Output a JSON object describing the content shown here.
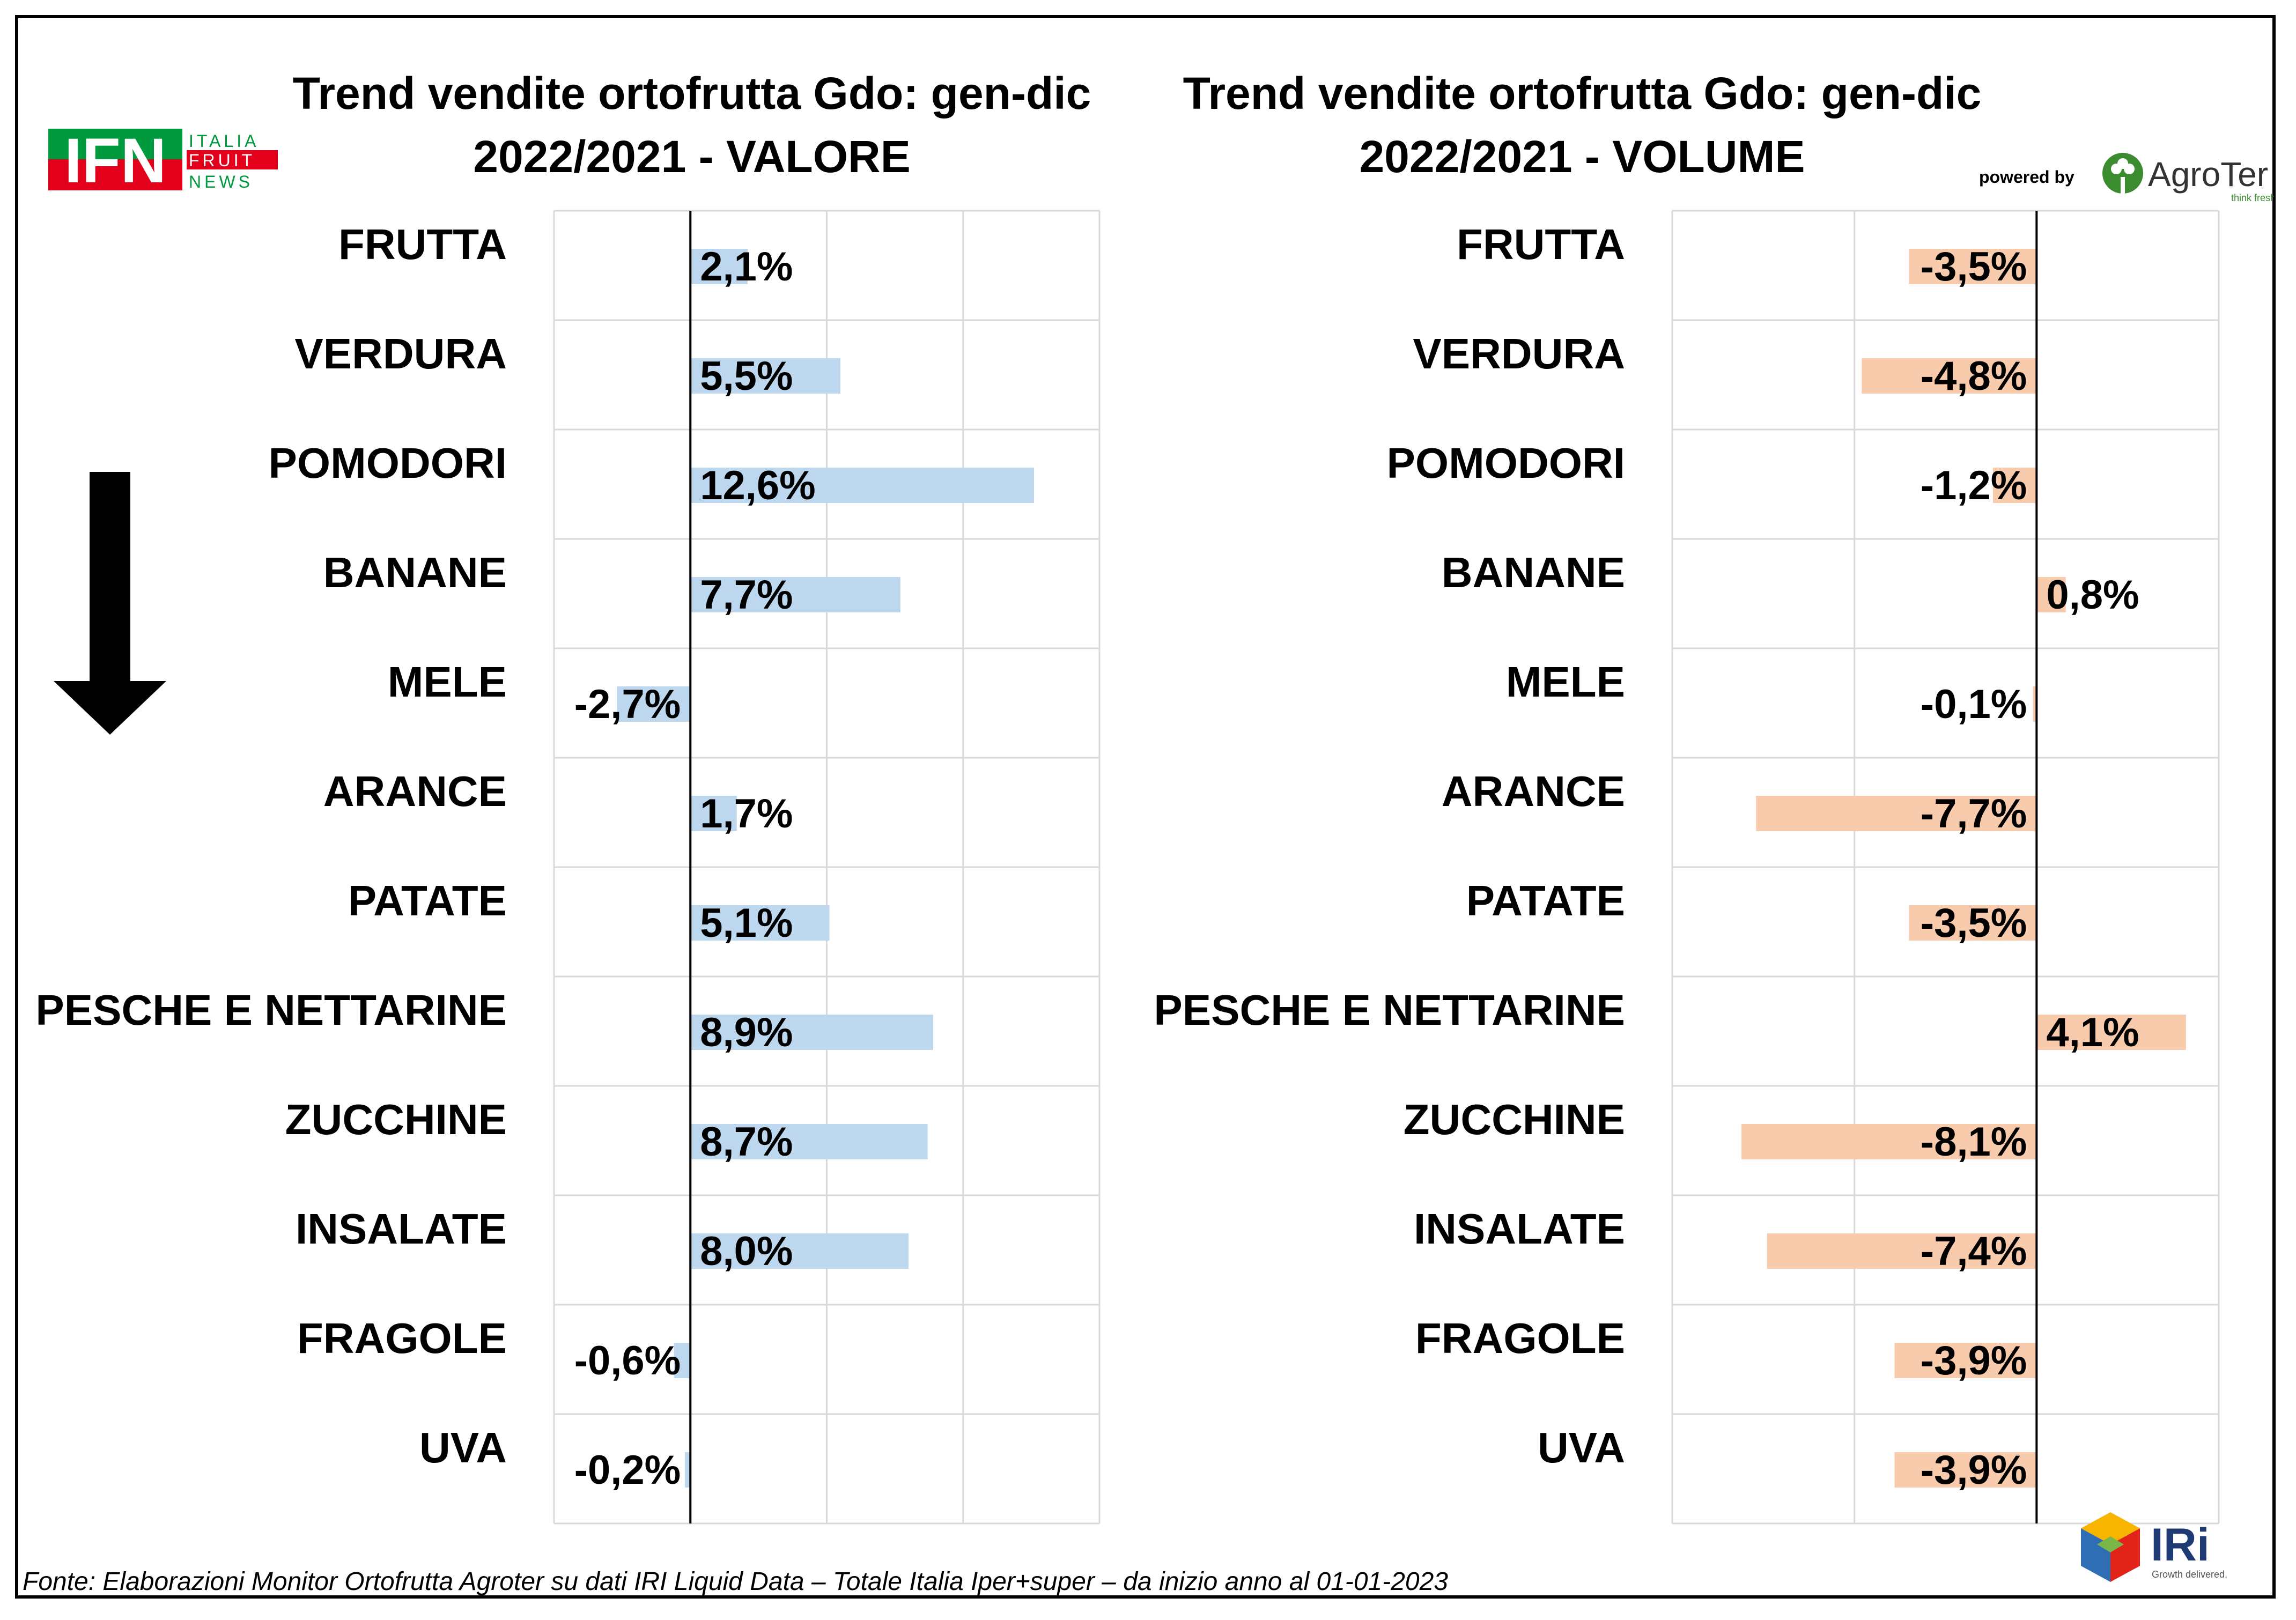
{
  "titles": {
    "left_line1": "Trend vendite ortofrutta Gdo: gen-dic",
    "left_line2": "2022/2021 - VALORE",
    "right_line1": "Trend vendite ortofrutta Gdo: gen-dic",
    "right_line2": "2022/2021 - VOLUME"
  },
  "logos": {
    "ifn_text": "IFN",
    "ifn_line1": "ITALIA",
    "ifn_line2": "FRUIT",
    "ifn_line3": "NEWS",
    "powered_by": "powered by",
    "agroter_name": "AgroTer",
    "agroter_tagline": "think fresh",
    "iri_name": "IRi",
    "iri_tagline": "Growth delivered."
  },
  "source_note": "Fonte: Elaborazioni Monitor Ortofrutta Agroter su dati IRI Liquid Data – Totale Italia Iper+super –  da inizio anno al 01-01-2023",
  "colors": {
    "valore_bar": "#bdd7ee",
    "volume_bar": "#f8cbad",
    "grid": "#d9d9d9",
    "ifn_red": "#e3001b",
    "ifn_green": "#009a3e",
    "agroter_green": "#3a8c2f"
  },
  "chart_data": [
    {
      "type": "bar",
      "orientation": "horizontal",
      "title": "Trend vendite ortofrutta Gdo: gen-dic 2022/2021 - VALORE",
      "categories": [
        "FRUTTA",
        "VERDURA",
        "POMODORI",
        "BANANE",
        "MELE",
        "ARANCE",
        "PATATE",
        "PESCHE E NETTARINE",
        "ZUCCHINE",
        "INSALATE",
        "FRAGOLE",
        "UVA"
      ],
      "values": [
        2.1,
        5.5,
        12.6,
        7.7,
        -2.7,
        1.7,
        5.1,
        8.9,
        8.7,
        8.0,
        -0.6,
        -0.2
      ],
      "labels": [
        "2,1%",
        "5,5%",
        "12,6%",
        "7,7%",
        "-2,7%",
        "1,7%",
        "5,1%",
        "8,9%",
        "8,7%",
        "8,0%",
        "-0,6%",
        "-0,2%"
      ],
      "xlim": [
        -5,
        15
      ],
      "grid": true,
      "unit": "%"
    },
    {
      "type": "bar",
      "orientation": "horizontal",
      "title": "Trend vendite ortofrutta Gdo: gen-dic 2022/2021 - VOLUME",
      "categories": [
        "FRUTTA",
        "VERDURA",
        "POMODORI",
        "BANANE",
        "MELE",
        "ARANCE",
        "PATATE",
        "PESCHE E NETTARINE",
        "ZUCCHINE",
        "INSALATE",
        "FRAGOLE",
        "UVA"
      ],
      "values": [
        -3.5,
        -4.8,
        -1.2,
        0.8,
        -0.1,
        -7.7,
        -3.5,
        4.1,
        -8.1,
        -7.4,
        -3.9,
        -3.9
      ],
      "labels": [
        "-3,5%",
        "-4,8%",
        "-1,2%",
        "0,8%",
        "-0,1%",
        "-7,7%",
        "-3,5%",
        "4,1%",
        "-8,1%",
        "-7,4%",
        "-3,9%",
        "-3,9%"
      ],
      "xlim": [
        -10,
        5
      ],
      "grid": true,
      "unit": "%"
    }
  ]
}
